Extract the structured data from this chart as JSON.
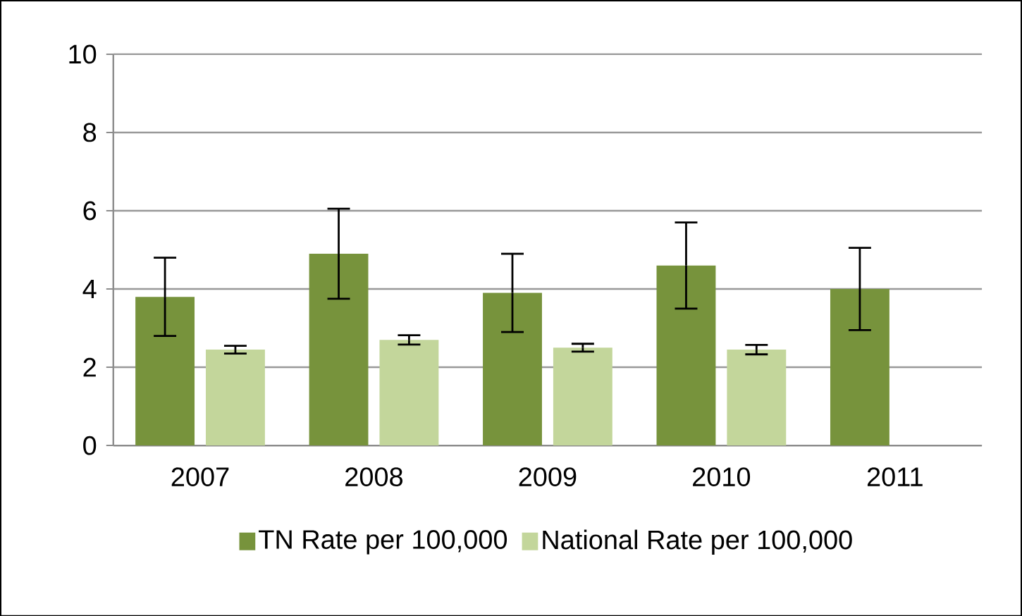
{
  "chart_data": {
    "type": "bar",
    "categories": [
      "2007",
      "2008",
      "2009",
      "2010",
      "2011"
    ],
    "series": [
      {
        "name": "TN Rate per 100,000",
        "color": "#77933c",
        "values": [
          3.8,
          4.9,
          3.9,
          4.6,
          4.0
        ],
        "errors": [
          1.0,
          1.15,
          1.0,
          1.1,
          1.05
        ]
      },
      {
        "name": "National Rate per 100,000",
        "color": "#c3d69b",
        "values": [
          2.45,
          2.7,
          2.5,
          2.45,
          null
        ],
        "errors": [
          0.1,
          0.12,
          0.1,
          0.12,
          null
        ]
      }
    ],
    "ylim": [
      0,
      10
    ],
    "yticks": [
      0,
      2,
      4,
      6,
      8,
      10
    ],
    "grid": "y",
    "legend": "bottom"
  }
}
